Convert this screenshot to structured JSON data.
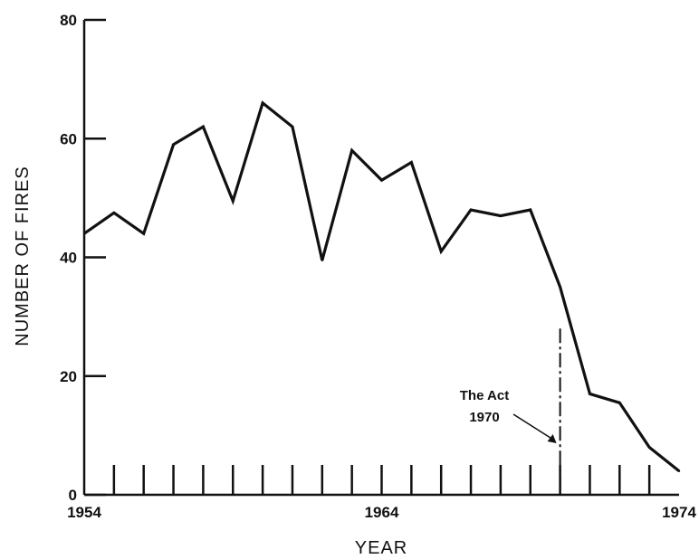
{
  "chart_data": {
    "type": "line",
    "title": "",
    "xlabel": "YEAR",
    "ylabel": "NUMBER OF FIRES",
    "xlim": [
      1954,
      1974
    ],
    "ylim": [
      0,
      80
    ],
    "x_tick_labels": [
      "1954",
      "1964",
      "1974"
    ],
    "y_tick_labels": [
      "0",
      "20",
      "40",
      "60",
      "80"
    ],
    "grid": false,
    "series": [
      {
        "x": [
          1954,
          1955,
          1956,
          1957,
          1958,
          1959,
          1960,
          1961,
          1962,
          1963,
          1964,
          1965,
          1966,
          1967,
          1968,
          1969,
          1970,
          1971,
          1972,
          1973,
          1974
        ],
        "values": [
          44,
          47.5,
          44,
          59,
          62,
          49.5,
          66,
          62,
          39.5,
          58,
          53,
          56,
          41,
          48,
          47,
          48,
          35,
          17,
          15.5,
          8,
          4
        ]
      }
    ],
    "annotations": [
      {
        "text_lines": [
          "The Act",
          "1970"
        ],
        "x": 1970
      }
    ]
  }
}
